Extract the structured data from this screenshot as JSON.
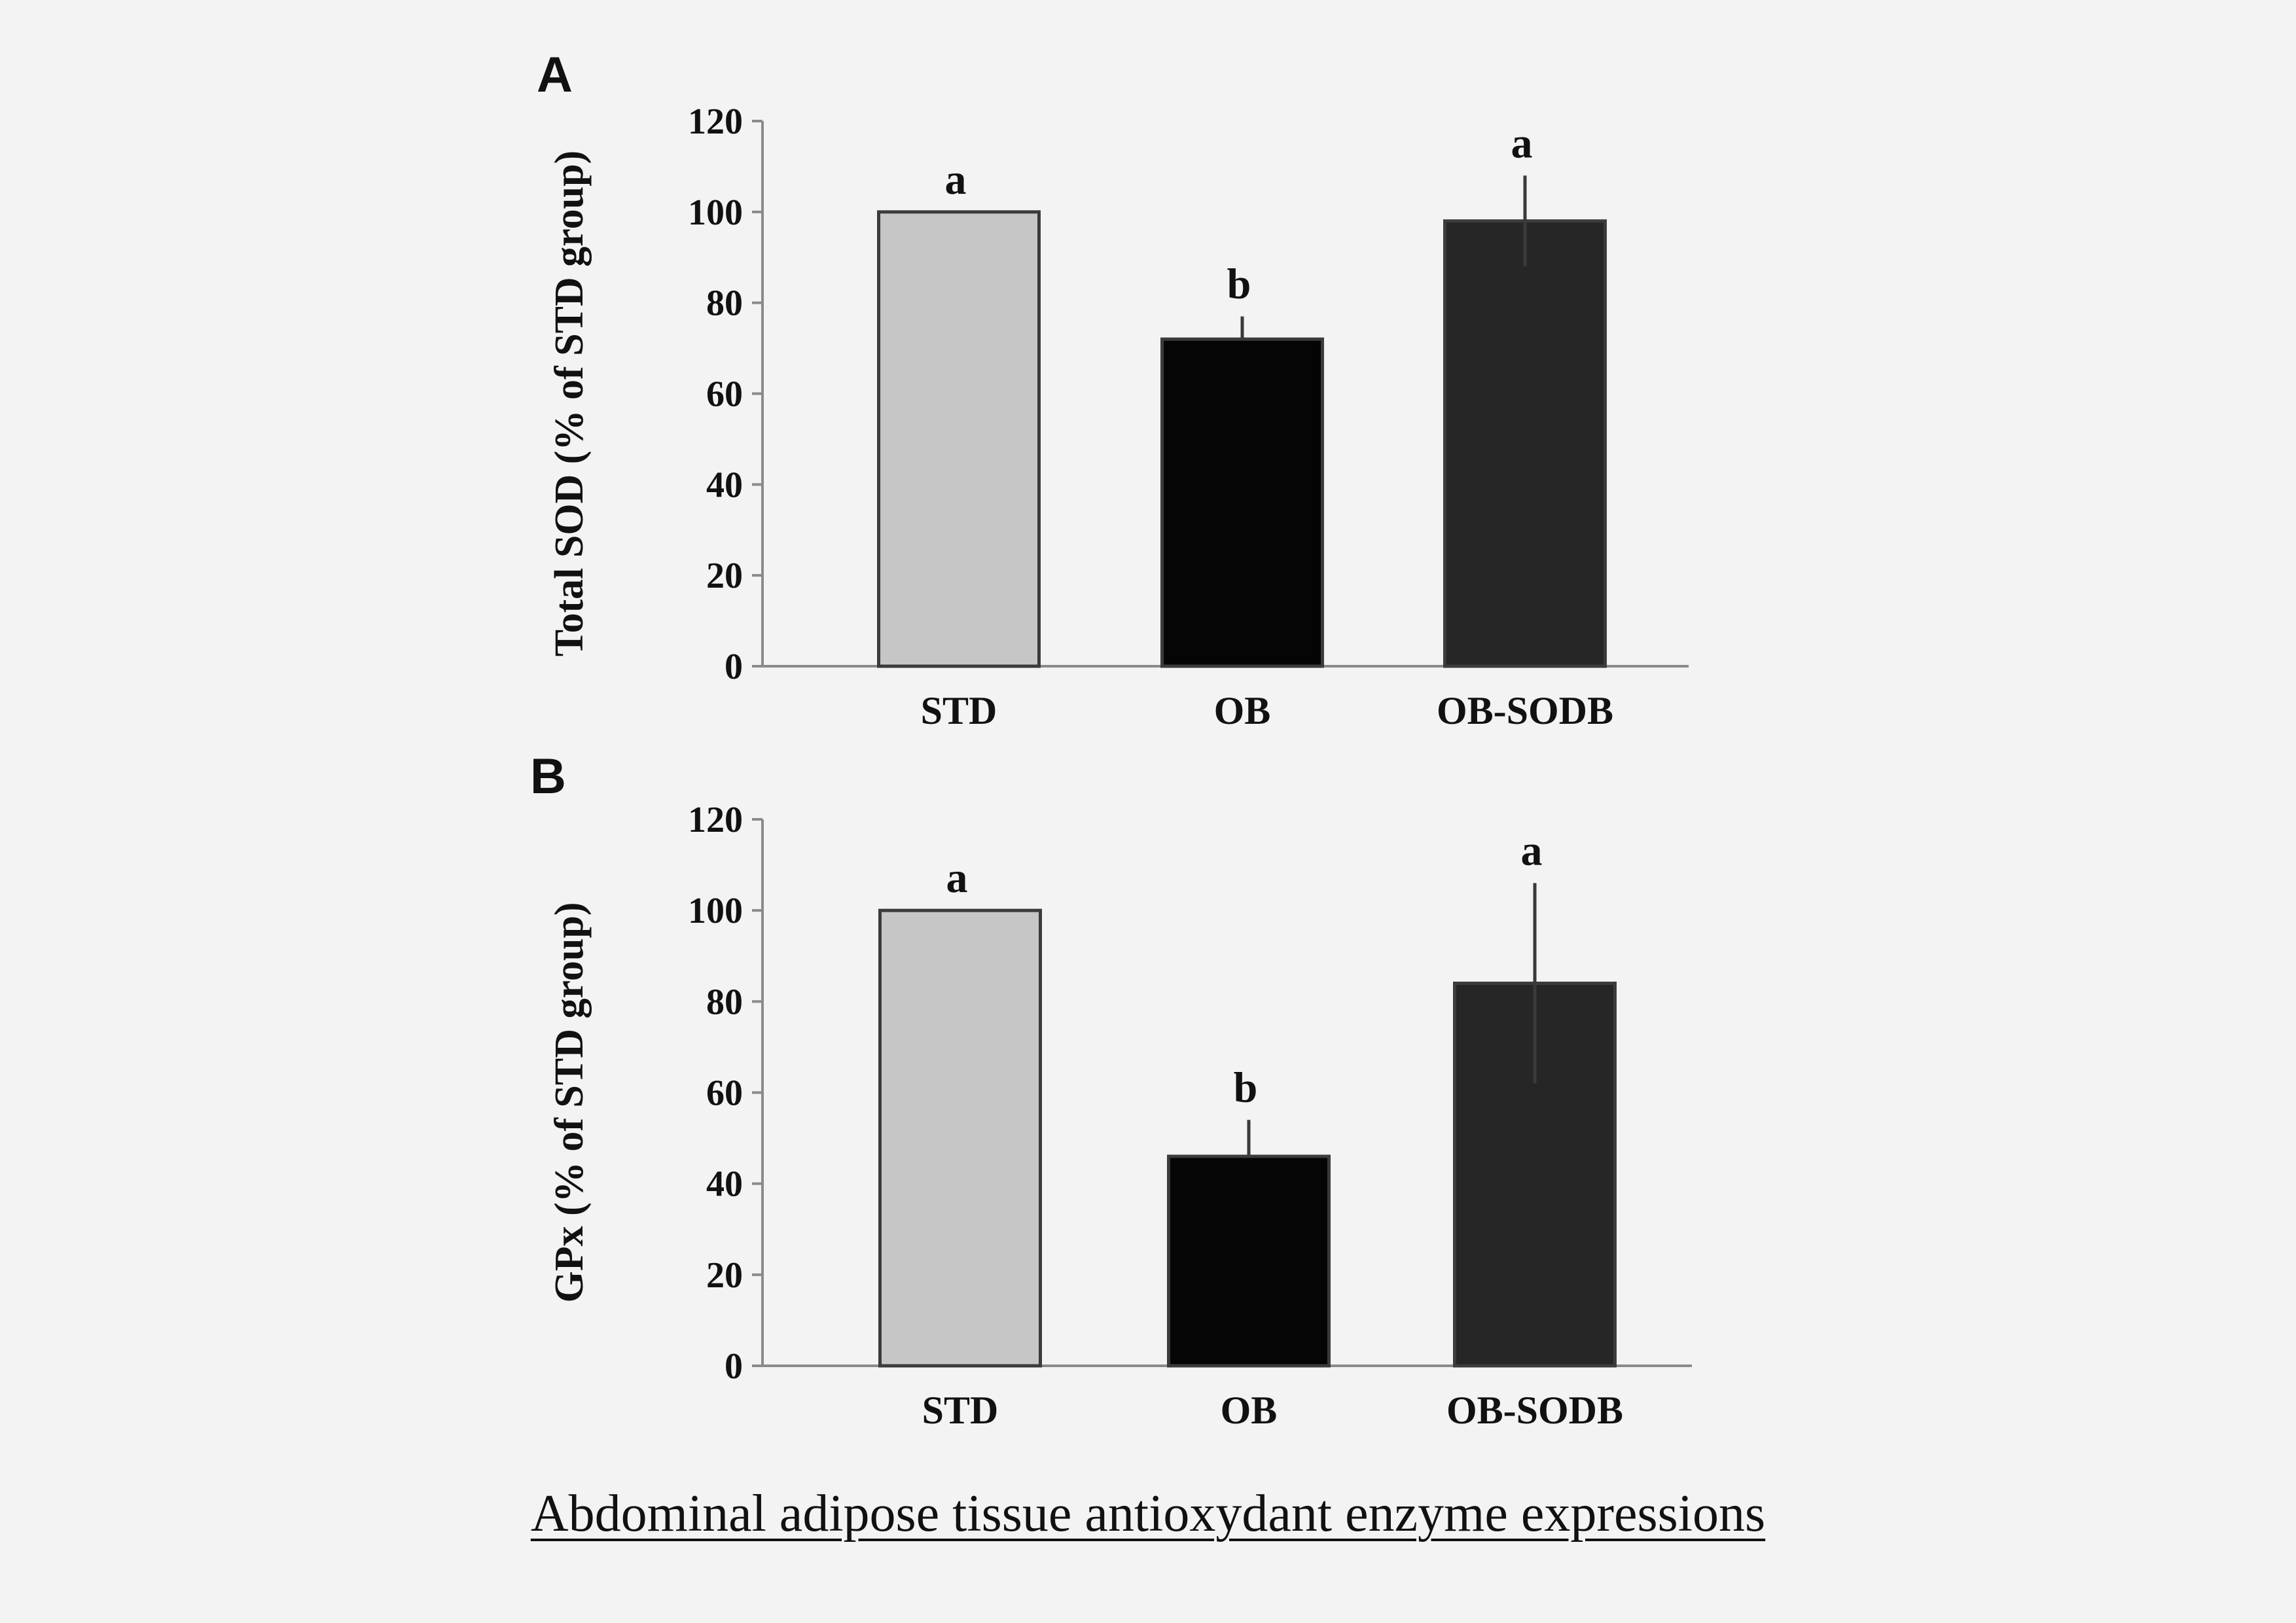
{
  "caption": "Abdominal adipose tissue antioxydant enzyme expressions",
  "colors": {
    "STD": "#c6c6c6",
    "OB": "#050505",
    "OB-SODB": "#262626",
    "axis": "#8a8a8a",
    "background": "#f3f3f3"
  },
  "chart_data": [
    {
      "type": "bar",
      "panel": "A",
      "ylabel": "Total SOD (% of STD group)",
      "ylim": [
        0,
        120
      ],
      "yticks": [
        "0",
        "20",
        "40",
        "60",
        "80",
        "100",
        "120"
      ],
      "categories": [
        "STD",
        "OB",
        "OB-SODB"
      ],
      "values": [
        100,
        72,
        98
      ],
      "error_upper": [
        0,
        5,
        10
      ],
      "error_lower": [
        0,
        0,
        10
      ],
      "significance": [
        "a",
        "b",
        "a"
      ]
    },
    {
      "type": "bar",
      "panel": "B",
      "ylabel": "GPx (% of STD group)",
      "ylim": [
        0,
        120
      ],
      "yticks": [
        "0",
        "20",
        "40",
        "60",
        "80",
        "100",
        "120"
      ],
      "categories": [
        "STD",
        "OB",
        "OB-SODB"
      ],
      "values": [
        100,
        46,
        84
      ],
      "error_upper": [
        0,
        8,
        22
      ],
      "error_lower": [
        0,
        0,
        22
      ],
      "significance": [
        "a",
        "b",
        "a"
      ]
    }
  ]
}
